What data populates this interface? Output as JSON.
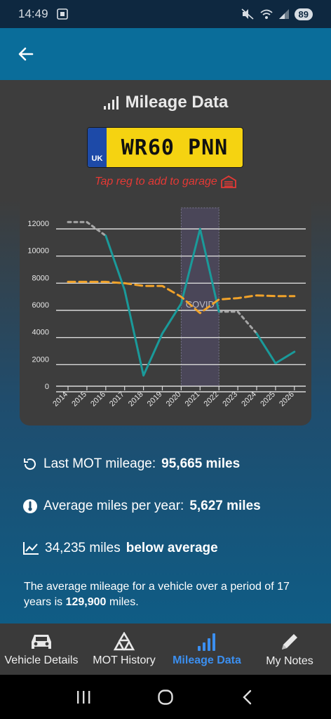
{
  "status_bar": {
    "time": "14:49",
    "battery": "89"
  },
  "header": {
    "title": "Mileage Data",
    "reg": "WR60 PNN",
    "uk_label": "UK",
    "tap_hint": "Tap reg to add to garage"
  },
  "chart_data": {
    "type": "line",
    "categories": [
      "2014",
      "2015",
      "2016",
      "2017",
      "2018",
      "2019",
      "2020",
      "2021",
      "2022",
      "2023",
      "2024",
      "2025",
      "2026"
    ],
    "ytick_labels": [
      "0",
      "2000",
      "4000",
      "6000",
      "8000",
      "10000",
      "12000"
    ],
    "ylim": [
      0,
      12000
    ],
    "annotation": "COVID",
    "series": [
      {
        "name": "",
        "style": "teal-solid",
        "color": "#1a9a9a",
        "values": [
          null,
          null,
          11500,
          7500,
          1200,
          4300,
          6500,
          12000,
          5900,
          null,
          4300,
          2100,
          2950
        ]
      },
      {
        "name": "",
        "style": "grey-dotted",
        "color": "#a6a6a6",
        "values": [
          12500,
          12500,
          11500,
          null,
          null,
          null,
          null,
          null,
          5900,
          5900,
          4300,
          null,
          null
        ]
      },
      {
        "name": "",
        "style": "orange-dashed",
        "color": "#f0a22a",
        "values": [
          8100,
          8100,
          8100,
          8000,
          7800,
          7800,
          7000,
          5800,
          6800,
          6900,
          7100,
          7050,
          7050
        ]
      }
    ],
    "highlight_range": [
      "2020",
      "2022"
    ]
  },
  "stats": {
    "last_mot_label": "Last MOT mileage:",
    "last_mot_value": "95,665 miles",
    "avg_label": "Average miles per year:",
    "avg_value": "5,627 miles",
    "below_value": "34,235 miles",
    "below_label": "below average",
    "summary_a": "The average mileage for a vehicle over a period of 17 years is ",
    "summary_value": "129,900",
    "summary_b": " miles."
  },
  "nav": {
    "items": [
      {
        "label": "Vehicle Details"
      },
      {
        "label": "MOT History"
      },
      {
        "label": "Mileage Data"
      },
      {
        "label": "My Notes"
      }
    ]
  }
}
